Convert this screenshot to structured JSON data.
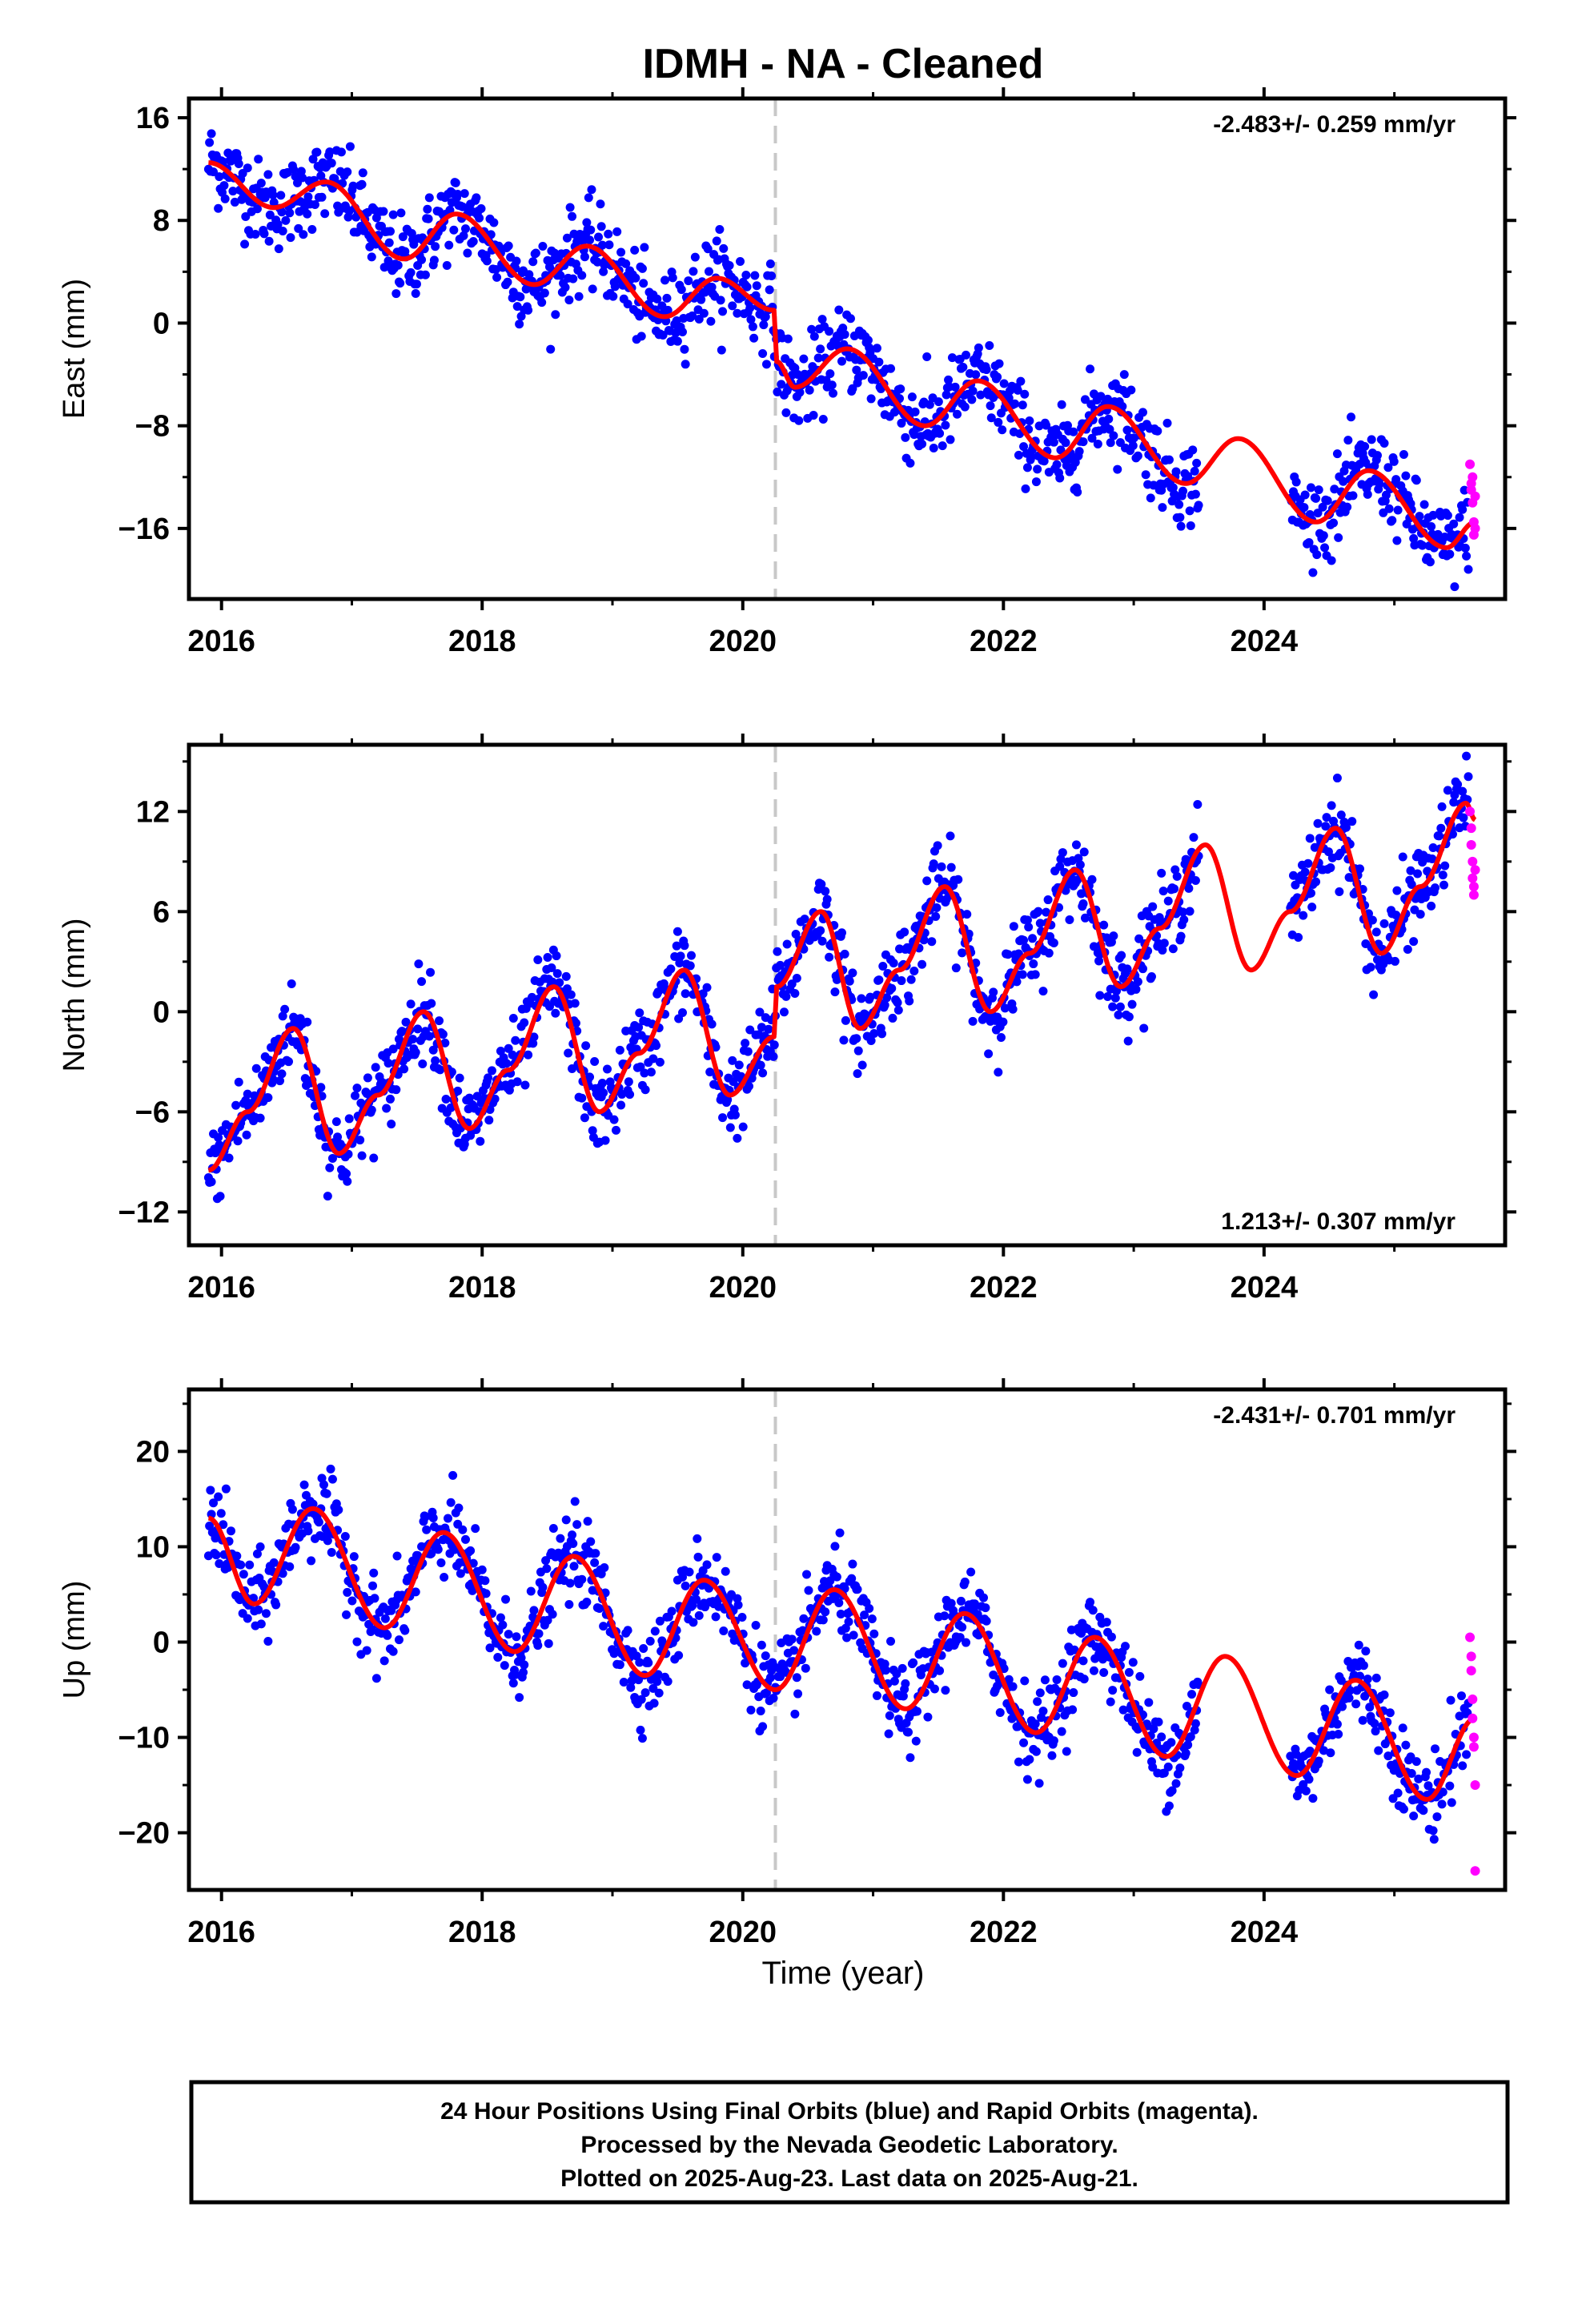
{
  "title": "IDMH  - NA - Cleaned",
  "xlabel": "Time (year)",
  "x_ticks": [
    2016,
    2018,
    2020,
    2022,
    2024
  ],
  "footer": [
    "24 Hour Positions Using Final Orbits (blue) and Rapid Orbits (magenta).",
    "Processed by the Nevada Geodetic Laboratory.",
    "Plotted on 2025-Aug-23. Last data on 2025-Aug-21."
  ],
  "colors": {
    "final_orbits": "#0000ff",
    "rapid_orbits": "#ff00ff",
    "model": "#ff0000",
    "event_line": "#c8c8c8"
  },
  "chart_data": [
    {
      "type": "scatter",
      "component": "east",
      "ylabel": "East (mm)",
      "xlim": [
        2015.75,
        2025.85
      ],
      "ylim": [
        -21.5,
        17.5
      ],
      "y_ticks": [
        16,
        8,
        0,
        -8,
        -16
      ],
      "rate_label": "-2.483+/- 0.259 mm/yr",
      "rate_position": "top-right",
      "event_line_x": 2020.25,
      "gaps": [
        [
          2023.5,
          2024.2
        ]
      ],
      "trend_points": [
        [
          2015.9,
          12.5
        ],
        [
          2016.4,
          9.0
        ],
        [
          2016.8,
          11.0
        ],
        [
          2017.4,
          5.0
        ],
        [
          2017.8,
          8.5
        ],
        [
          2018.4,
          3.0
        ],
        [
          2018.8,
          6.0
        ],
        [
          2019.4,
          0.5
        ],
        [
          2019.8,
          3.5
        ],
        [
          2020.24,
          1.0
        ],
        [
          2020.26,
          -3.0
        ],
        [
          2020.4,
          -5.0
        ],
        [
          2020.8,
          -2.0
        ],
        [
          2021.4,
          -8.0
        ],
        [
          2021.8,
          -4.5
        ],
        [
          2022.4,
          -10.5
        ],
        [
          2022.8,
          -6.5
        ],
        [
          2023.4,
          -12.5
        ],
        [
          2023.8,
          -9.0
        ],
        [
          2024.4,
          -15.5
        ],
        [
          2024.8,
          -11.5
        ],
        [
          2025.4,
          -17.5
        ],
        [
          2025.62,
          -15.5
        ]
      ],
      "rapid_points": [
        [
          2025.58,
          -11.0
        ],
        [
          2025.59,
          -12.5
        ],
        [
          2025.59,
          -13.0
        ],
        [
          2025.6,
          -12.0
        ],
        [
          2025.6,
          -14.0
        ],
        [
          2025.61,
          -15.5
        ],
        [
          2025.61,
          -16.5
        ],
        [
          2025.62,
          -16.0
        ],
        [
          2025.62,
          -13.5
        ]
      ]
    },
    {
      "type": "scatter",
      "component": "north",
      "ylabel": "North (mm)",
      "xlim": [
        2015.75,
        2025.85
      ],
      "ylim": [
        -14.0,
        16.0
      ],
      "y_ticks": [
        12,
        6,
        0,
        -6,
        -12
      ],
      "rate_label": "1.213+/- 0.307 mm/yr",
      "rate_position": "bottom-right",
      "event_line_x": 2020.25,
      "gaps": [
        [
          2023.5,
          2024.2
        ]
      ],
      "trend_points": [
        [
          2015.9,
          -9.5
        ],
        [
          2016.2,
          -6.0
        ],
        [
          2016.55,
          -1.0
        ],
        [
          2016.9,
          -8.5
        ],
        [
          2017.2,
          -5.0
        ],
        [
          2017.55,
          0.0
        ],
        [
          2017.9,
          -7.0
        ],
        [
          2018.2,
          -3.5
        ],
        [
          2018.55,
          1.5
        ],
        [
          2018.9,
          -6.0
        ],
        [
          2019.2,
          -2.5
        ],
        [
          2019.55,
          2.5
        ],
        [
          2019.9,
          -5.0
        ],
        [
          2020.24,
          -1.5
        ],
        [
          2020.26,
          1.5
        ],
        [
          2020.6,
          6.0
        ],
        [
          2020.9,
          -1.0
        ],
        [
          2021.2,
          2.5
        ],
        [
          2021.55,
          7.5
        ],
        [
          2021.9,
          0.0
        ],
        [
          2022.2,
          3.5
        ],
        [
          2022.55,
          8.5
        ],
        [
          2022.9,
          1.5
        ],
        [
          2023.2,
          5.0
        ],
        [
          2023.55,
          10.0
        ],
        [
          2023.9,
          2.5
        ],
        [
          2024.2,
          6.0
        ],
        [
          2024.55,
          11.0
        ],
        [
          2024.9,
          3.5
        ],
        [
          2025.2,
          7.5
        ],
        [
          2025.55,
          12.5
        ],
        [
          2025.62,
          11.5
        ]
      ],
      "rapid_points": [
        [
          2025.58,
          12.0
        ],
        [
          2025.59,
          11.0
        ],
        [
          2025.59,
          10.0
        ],
        [
          2025.6,
          9.0
        ],
        [
          2025.6,
          8.0
        ],
        [
          2025.61,
          7.5
        ],
        [
          2025.61,
          7.0
        ],
        [
          2025.62,
          8.5
        ]
      ]
    },
    {
      "type": "scatter",
      "component": "up",
      "ylabel": "Up (mm)",
      "xlim": [
        2015.75,
        2025.85
      ],
      "ylim": [
        -26.0,
        26.5
      ],
      "y_ticks": [
        20,
        10,
        0,
        -10,
        -20
      ],
      "rate_label": "-2.431+/- 0.701 mm/yr",
      "rate_position": "top-right",
      "event_line_x": 2020.25,
      "gaps": [
        [
          2023.5,
          2024.2
        ]
      ],
      "trend_points": [
        [
          2015.9,
          13.0
        ],
        [
          2016.25,
          4.0
        ],
        [
          2016.7,
          14.0
        ],
        [
          2017.25,
          1.5
        ],
        [
          2017.7,
          11.5
        ],
        [
          2018.25,
          -1.0
        ],
        [
          2018.7,
          9.0
        ],
        [
          2019.25,
          -3.5
        ],
        [
          2019.7,
          6.5
        ],
        [
          2020.25,
          -5.0
        ],
        [
          2020.7,
          5.5
        ],
        [
          2021.25,
          -7.0
        ],
        [
          2021.7,
          3.0
        ],
        [
          2022.25,
          -9.5
        ],
        [
          2022.7,
          0.5
        ],
        [
          2023.25,
          -12.0
        ],
        [
          2023.7,
          -1.5
        ],
        [
          2024.25,
          -14.0
        ],
        [
          2024.7,
          -4.0
        ],
        [
          2025.25,
          -16.5
        ],
        [
          2025.62,
          -8.0
        ]
      ],
      "rapid_points": [
        [
          2025.58,
          0.5
        ],
        [
          2025.59,
          -1.5
        ],
        [
          2025.59,
          -3.0
        ],
        [
          2025.6,
          -6.0
        ],
        [
          2025.6,
          -8.0
        ],
        [
          2025.61,
          -10.0
        ],
        [
          2025.61,
          -11.0
        ],
        [
          2025.62,
          -15.0
        ],
        [
          2025.62,
          -24.0
        ]
      ]
    }
  ]
}
